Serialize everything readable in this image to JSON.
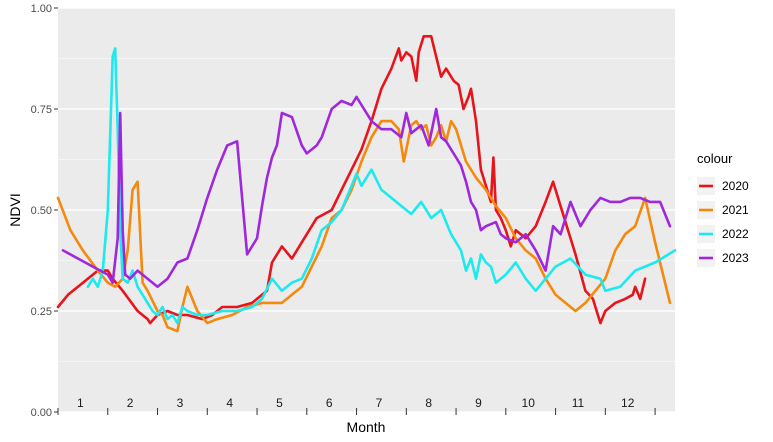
{
  "chart_data": {
    "type": "line",
    "xlabel": "Month",
    "ylabel": "NDVI",
    "legend_title": "colour",
    "legend_position": "right",
    "grid": true,
    "ylim": [
      0,
      1
    ],
    "y_ticks": [
      0.0,
      0.25,
      0.5,
      0.75,
      1.0
    ],
    "y_tick_labels": [
      "0.00",
      "0.25",
      "0.50",
      "0.75",
      "1.00"
    ],
    "xlim": [
      0,
      12.4
    ],
    "month_labels": [
      "1",
      "2",
      "3",
      "4",
      "5",
      "6",
      "7",
      "8",
      "9",
      "10",
      "11",
      "12"
    ],
    "colors": {
      "panel": "#ebebeb",
      "grid": "#ffffff"
    },
    "series": [
      {
        "name": "2020",
        "color": "#e8141c",
        "x": [
          0.0,
          0.2,
          0.5,
          0.8,
          1.0,
          1.1,
          1.3,
          1.6,
          1.8,
          1.85,
          2.0,
          2.2,
          2.4,
          2.6,
          2.9,
          3.1,
          3.3,
          3.6,
          3.9,
          4.0,
          4.1,
          4.2,
          4.3,
          4.5,
          4.7,
          4.9,
          5.2,
          5.5,
          5.7,
          5.9,
          6.1,
          6.3,
          6.5,
          6.7,
          6.85,
          6.9,
          7.0,
          7.1,
          7.2,
          7.25,
          7.35,
          7.5,
          7.7,
          7.8,
          7.95,
          8.05,
          8.15,
          8.25,
          8.3,
          8.4,
          8.5,
          8.6,
          8.7,
          8.75,
          8.8,
          8.9,
          9.0,
          9.1,
          9.2,
          9.4,
          9.6,
          9.8,
          9.95,
          10.2,
          10.4,
          10.6,
          10.75,
          10.9,
          11.0,
          11.2,
          11.4,
          11.55,
          11.6,
          11.7,
          11.8
        ],
        "y": [
          0.26,
          0.29,
          0.32,
          0.35,
          0.35,
          0.33,
          0.3,
          0.25,
          0.23,
          0.22,
          0.24,
          0.25,
          0.24,
          0.24,
          0.23,
          0.24,
          0.26,
          0.26,
          0.27,
          0.28,
          0.29,
          0.3,
          0.37,
          0.41,
          0.38,
          0.42,
          0.48,
          0.5,
          0.55,
          0.6,
          0.65,
          0.72,
          0.8,
          0.85,
          0.9,
          0.87,
          0.89,
          0.88,
          0.82,
          0.89,
          0.93,
          0.93,
          0.83,
          0.85,
          0.82,
          0.81,
          0.75,
          0.78,
          0.8,
          0.72,
          0.6,
          0.56,
          0.52,
          0.63,
          0.5,
          0.48,
          0.45,
          0.41,
          0.45,
          0.43,
          0.46,
          0.52,
          0.57,
          0.47,
          0.39,
          0.3,
          0.28,
          0.22,
          0.25,
          0.27,
          0.28,
          0.29,
          0.31,
          0.28,
          0.33
        ]
      },
      {
        "name": "2021",
        "color": "#f5890d",
        "x": [
          0.0,
          0.25,
          0.5,
          0.8,
          1.0,
          1.15,
          1.3,
          1.4,
          1.5,
          1.6,
          1.7,
          1.8,
          2.0,
          2.1,
          2.2,
          2.4,
          2.5,
          2.6,
          2.8,
          3.0,
          3.2,
          3.5,
          3.8,
          4.1,
          4.3,
          4.5,
          4.7,
          4.9,
          5.1,
          5.3,
          5.5,
          5.7,
          5.9,
          6.1,
          6.3,
          6.5,
          6.7,
          6.85,
          6.95,
          7.1,
          7.2,
          7.3,
          7.4,
          7.5,
          7.6,
          7.7,
          7.8,
          7.9,
          8.0,
          8.2,
          8.4,
          8.6,
          8.8,
          9.0,
          9.2,
          9.4,
          9.6,
          9.8,
          10.0,
          10.2,
          10.4,
          10.6,
          10.8,
          11.0,
          11.2,
          11.4,
          11.6,
          11.8,
          12.0,
          12.3
        ],
        "y": [
          0.53,
          0.45,
          0.4,
          0.35,
          0.32,
          0.31,
          0.33,
          0.4,
          0.55,
          0.57,
          0.32,
          0.3,
          0.25,
          0.24,
          0.21,
          0.2,
          0.26,
          0.31,
          0.25,
          0.22,
          0.23,
          0.24,
          0.26,
          0.27,
          0.27,
          0.27,
          0.29,
          0.31,
          0.36,
          0.41,
          0.48,
          0.5,
          0.55,
          0.62,
          0.68,
          0.72,
          0.72,
          0.7,
          0.62,
          0.71,
          0.72,
          0.7,
          0.71,
          0.66,
          0.68,
          0.71,
          0.67,
          0.72,
          0.7,
          0.62,
          0.58,
          0.55,
          0.51,
          0.48,
          0.43,
          0.4,
          0.38,
          0.33,
          0.29,
          0.27,
          0.25,
          0.27,
          0.3,
          0.33,
          0.4,
          0.44,
          0.46,
          0.53,
          0.42,
          0.27
        ]
      },
      {
        "name": "2022",
        "color": "#1de9ee",
        "x": [
          0.6,
          0.7,
          0.8,
          0.9,
          1.0,
          1.1,
          1.15,
          1.2,
          1.25,
          1.3,
          1.4,
          1.5,
          1.6,
          1.7,
          1.8,
          1.9,
          2.0,
          2.1,
          2.2,
          2.3,
          2.4,
          2.5,
          2.6,
          2.8,
          3.0,
          3.3,
          3.6,
          3.9,
          4.1,
          4.3,
          4.5,
          4.7,
          4.9,
          5.1,
          5.3,
          5.5,
          5.7,
          5.9,
          6.0,
          6.1,
          6.2,
          6.3,
          6.5,
          6.7,
          6.9,
          7.1,
          7.3,
          7.5,
          7.7,
          7.9,
          8.1,
          8.2,
          8.3,
          8.4,
          8.5,
          8.6,
          8.7,
          8.8,
          9.0,
          9.2,
          9.4,
          9.6,
          9.8,
          10.0,
          10.3,
          10.6,
          10.9,
          11.0,
          11.3,
          11.6,
          12.0,
          12.4
        ],
        "y": [
          0.31,
          0.33,
          0.31,
          0.35,
          0.5,
          0.88,
          0.9,
          0.7,
          0.45,
          0.33,
          0.32,
          0.35,
          0.31,
          0.29,
          0.27,
          0.25,
          0.24,
          0.26,
          0.23,
          0.24,
          0.22,
          0.26,
          0.25,
          0.24,
          0.24,
          0.25,
          0.25,
          0.26,
          0.28,
          0.33,
          0.3,
          0.32,
          0.33,
          0.38,
          0.45,
          0.47,
          0.5,
          0.56,
          0.59,
          0.56,
          0.58,
          0.6,
          0.55,
          0.53,
          0.51,
          0.49,
          0.52,
          0.48,
          0.5,
          0.44,
          0.4,
          0.35,
          0.38,
          0.33,
          0.39,
          0.37,
          0.36,
          0.32,
          0.34,
          0.37,
          0.33,
          0.3,
          0.33,
          0.36,
          0.38,
          0.34,
          0.33,
          0.3,
          0.31,
          0.35,
          0.37,
          0.4
        ]
      },
      {
        "name": "2023",
        "color": "#a028dc",
        "x": [
          0.1,
          0.4,
          0.7,
          1.0,
          1.1,
          1.2,
          1.25,
          1.3,
          1.35,
          1.45,
          1.6,
          1.8,
          2.0,
          2.2,
          2.4,
          2.6,
          2.8,
          3.0,
          3.2,
          3.4,
          3.6,
          3.8,
          4.0,
          4.1,
          4.2,
          4.3,
          4.4,
          4.5,
          4.7,
          4.9,
          5.0,
          5.1,
          5.2,
          5.3,
          5.5,
          5.7,
          5.9,
          6.0,
          6.1,
          6.3,
          6.5,
          6.7,
          6.9,
          7.0,
          7.1,
          7.2,
          7.3,
          7.45,
          7.6,
          7.7,
          7.8,
          7.9,
          8.0,
          8.1,
          8.2,
          8.3,
          8.4,
          8.5,
          8.6,
          8.8,
          8.9,
          9.0,
          9.2,
          9.4,
          9.6,
          9.8,
          9.95,
          10.1,
          10.3,
          10.5,
          10.7,
          10.9,
          11.1,
          11.3,
          11.5,
          11.7,
          11.9,
          12.1,
          12.3
        ],
        "y": [
          0.4,
          0.38,
          0.36,
          0.34,
          0.32,
          0.43,
          0.74,
          0.45,
          0.34,
          0.33,
          0.35,
          0.33,
          0.31,
          0.33,
          0.37,
          0.38,
          0.45,
          0.53,
          0.6,
          0.66,
          0.67,
          0.39,
          0.43,
          0.51,
          0.58,
          0.63,
          0.66,
          0.74,
          0.73,
          0.66,
          0.64,
          0.65,
          0.66,
          0.68,
          0.75,
          0.77,
          0.76,
          0.78,
          0.76,
          0.72,
          0.7,
          0.7,
          0.68,
          0.74,
          0.69,
          0.7,
          0.71,
          0.66,
          0.75,
          0.68,
          0.67,
          0.65,
          0.63,
          0.61,
          0.57,
          0.52,
          0.5,
          0.45,
          0.46,
          0.47,
          0.44,
          0.43,
          0.42,
          0.44,
          0.4,
          0.35,
          0.46,
          0.44,
          0.52,
          0.46,
          0.5,
          0.53,
          0.52,
          0.52,
          0.53,
          0.53,
          0.52,
          0.52,
          0.46
        ]
      }
    ]
  }
}
